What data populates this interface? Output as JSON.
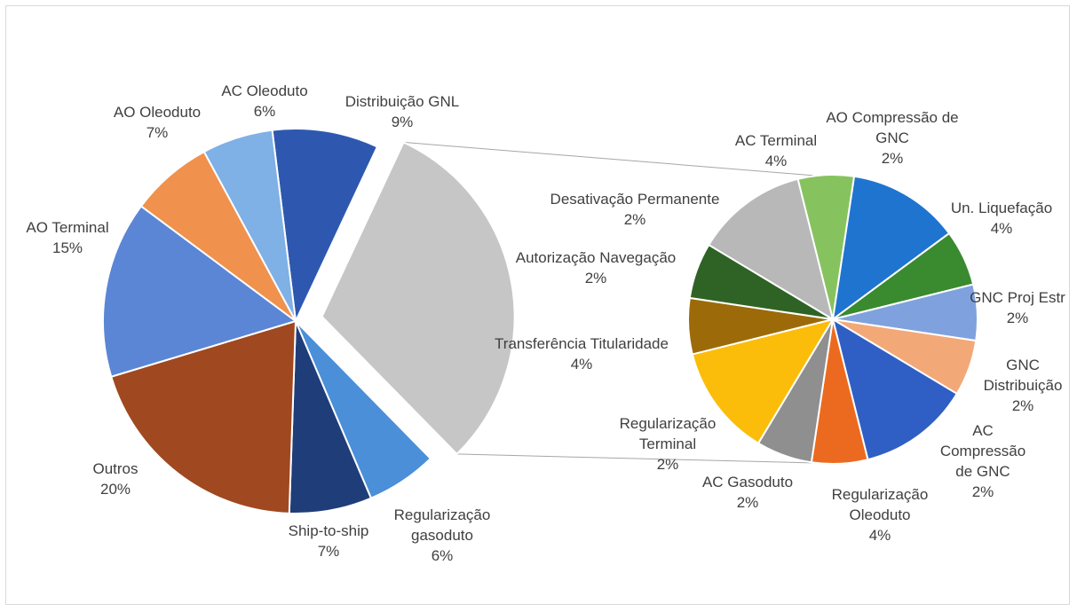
{
  "chart_data": {
    "type": "pie-of-pie",
    "title": "",
    "main_pie": {
      "slices": [
        {
          "label": "Distribuição GNL",
          "value_text": "9%",
          "value": 9,
          "color": "#2e58b0"
        },
        {
          "label": "",
          "value_text": "",
          "value": 31,
          "color": "#c6c6c6",
          "group": "other"
        },
        {
          "label": "Regularização gasoduto",
          "value_text": "6%",
          "value": 6,
          "color": "#4a8fd8"
        },
        {
          "label": "Ship-to-ship",
          "value_text": "7%",
          "value": 7,
          "color": "#1f3d78"
        },
        {
          "label": "Outros",
          "value_text": "20%",
          "value": 20,
          "color": "#a04820"
        },
        {
          "label": "AO Terminal",
          "value_text": "15%",
          "value": 15,
          "color": "#5b86d6"
        },
        {
          "label": "AO Oleoduto",
          "value_text": "7%",
          "value": 7,
          "color": "#f0914d"
        },
        {
          "label": "AC Oleoduto",
          "value_text": "6%",
          "value": 6,
          "color": "#7fb0e6"
        }
      ]
    },
    "secondary_pie": {
      "slices": [
        {
          "label": "AO Compressão de GNC",
          "value_text": "2%",
          "value": 2,
          "color": "#86c35f"
        },
        {
          "label": "Un. Liquefação",
          "value_text": "4%",
          "value": 4,
          "color": "#1f74cf"
        },
        {
          "label": "GNC Proj Estr",
          "value_text": "2%",
          "value": 2,
          "color": "#3a8a2f"
        },
        {
          "label": "GNC Distribuição",
          "value_text": "2%",
          "value": 2,
          "color": "#7fa2de"
        },
        {
          "label": "AC Compressão de GNC",
          "value_text": "2%",
          "value": 2,
          "color": "#f3a878"
        },
        {
          "label": "Regularização Oleoduto",
          "value_text": "4%",
          "value": 4,
          "color": "#2f5fc4"
        },
        {
          "label": "AC Gasoduto",
          "value_text": "2%",
          "value": 2,
          "color": "#ec6a1f"
        },
        {
          "label": "Regularização Terminal",
          "value_text": "2%",
          "value": 2,
          "color": "#8f8f8f"
        },
        {
          "label": "Transferência Titularidade",
          "value_text": "4%",
          "value": 4,
          "color": "#fbbd0a"
        },
        {
          "label": "Autorização Navegação",
          "value_text": "2%",
          "value": 2,
          "color": "#9c6a08"
        },
        {
          "label": "Desativação Permanente",
          "value_text": "2%",
          "value": 2,
          "color": "#2f6325"
        },
        {
          "label": "AC Terminal",
          "value_text": "4%",
          "value": 4,
          "color": "#b8b8b8"
        }
      ]
    },
    "legend": "none",
    "data_labels": "outside"
  }
}
